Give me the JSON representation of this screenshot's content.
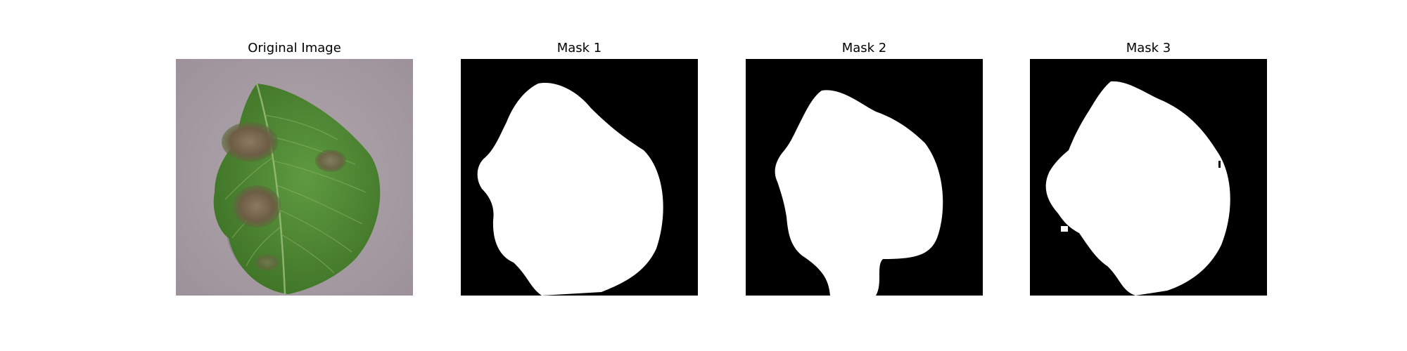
{
  "figure": {
    "panels": [
      {
        "title": "Original Image",
        "kind": "photo",
        "subject": "leaf-with-blight-lesions"
      },
      {
        "title": "Mask 1",
        "kind": "binary-mask"
      },
      {
        "title": "Mask 2",
        "kind": "binary-mask"
      },
      {
        "title": "Mask 3",
        "kind": "binary-mask"
      }
    ]
  },
  "colors": {
    "background_surface": "#a99ea5",
    "leaf_green": "#4f8a34",
    "leaf_dark": "#3b6e26",
    "lesion": "#7b6a4f",
    "mask_fg": "#ffffff",
    "mask_bg": "#000000"
  }
}
